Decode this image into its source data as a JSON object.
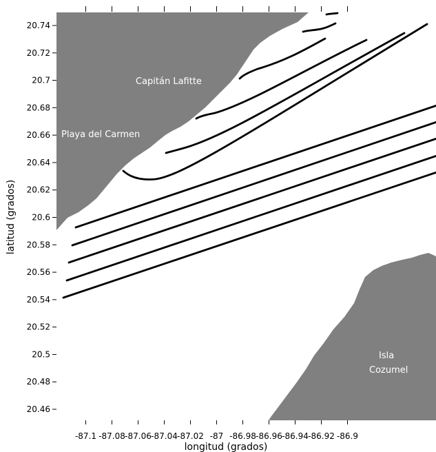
{
  "map": {
    "xlabel": "longitud (grados)",
    "ylabel": "latitud (grados)",
    "xlim": [
      -87.12,
      -86.88
    ],
    "ylim": [
      20.45,
      20.75
    ],
    "x_ticks": [
      "-87.1",
      "-87.08",
      "-87.06",
      "-87.04",
      "-87.02",
      "-87",
      "-86.98",
      "-86.96",
      "-86.94",
      "-86.92",
      "-86.9"
    ],
    "y_ticks": [
      "20.46",
      "20.48",
      "20.5",
      "20.52",
      "20.54",
      "20.56",
      "20.58",
      "20.6",
      "20.62",
      "20.64",
      "20.66",
      "20.68",
      "20.7",
      "20.72",
      "20.74"
    ],
    "land_color": "#808080",
    "water_color": "#ffffff",
    "line_color": "#000000",
    "place_labels": [
      {
        "name": "capitan-lafitte",
        "text": "Capitán Lafitte"
      },
      {
        "name": "playa-del-carmen",
        "text": "Playa del Carmen"
      },
      {
        "name": "isla",
        "text": "Isla"
      },
      {
        "name": "cozumel",
        "text": "Cozumel"
      }
    ],
    "streamlines": [
      {
        "start": [
          -87.0791,
          20.6306
        ],
        "end": [
          -86.9,
          20.747
        ]
      },
      {
        "start": [
          -87.052,
          20.6445
        ],
        "end": [
          -86.912,
          20.74
        ]
      },
      {
        "start": [
          -87.0344,
          20.6731
        ],
        "end": [
          -86.9315,
          20.7426
        ]
      },
      {
        "start": [
          -87.0095,
          20.7023
        ],
        "end": [
          -86.9524,
          20.7436
        ]
      },
      {
        "start": [
          -86.9758,
          20.7356
        ],
        "end": [
          -86.9581,
          20.7471
        ]
      },
      {
        "start": [
          -86.9652,
          20.7473
        ],
        "end": [
          -86.9572,
          20.7482
        ]
      },
      {
        "start": [
          -87.1088,
          20.5914
        ],
        "end": [
          -86.8856,
          20.6854
        ]
      },
      {
        "start": [
          -87.1118,
          20.5789
        ],
        "end": [
          -86.8848,
          20.6731
        ]
      },
      {
        "start": [
          -87.1151,
          20.5659
        ],
        "end": [
          -86.8865,
          20.6608
        ]
      },
      {
        "start": [
          -87.1151,
          20.5535
        ],
        "end": [
          -86.8873,
          20.6479
        ]
      },
      {
        "start": [
          -87.1164,
          20.5408
        ],
        "end": [
          -86.8869,
          20.6348
        ]
      }
    ]
  }
}
